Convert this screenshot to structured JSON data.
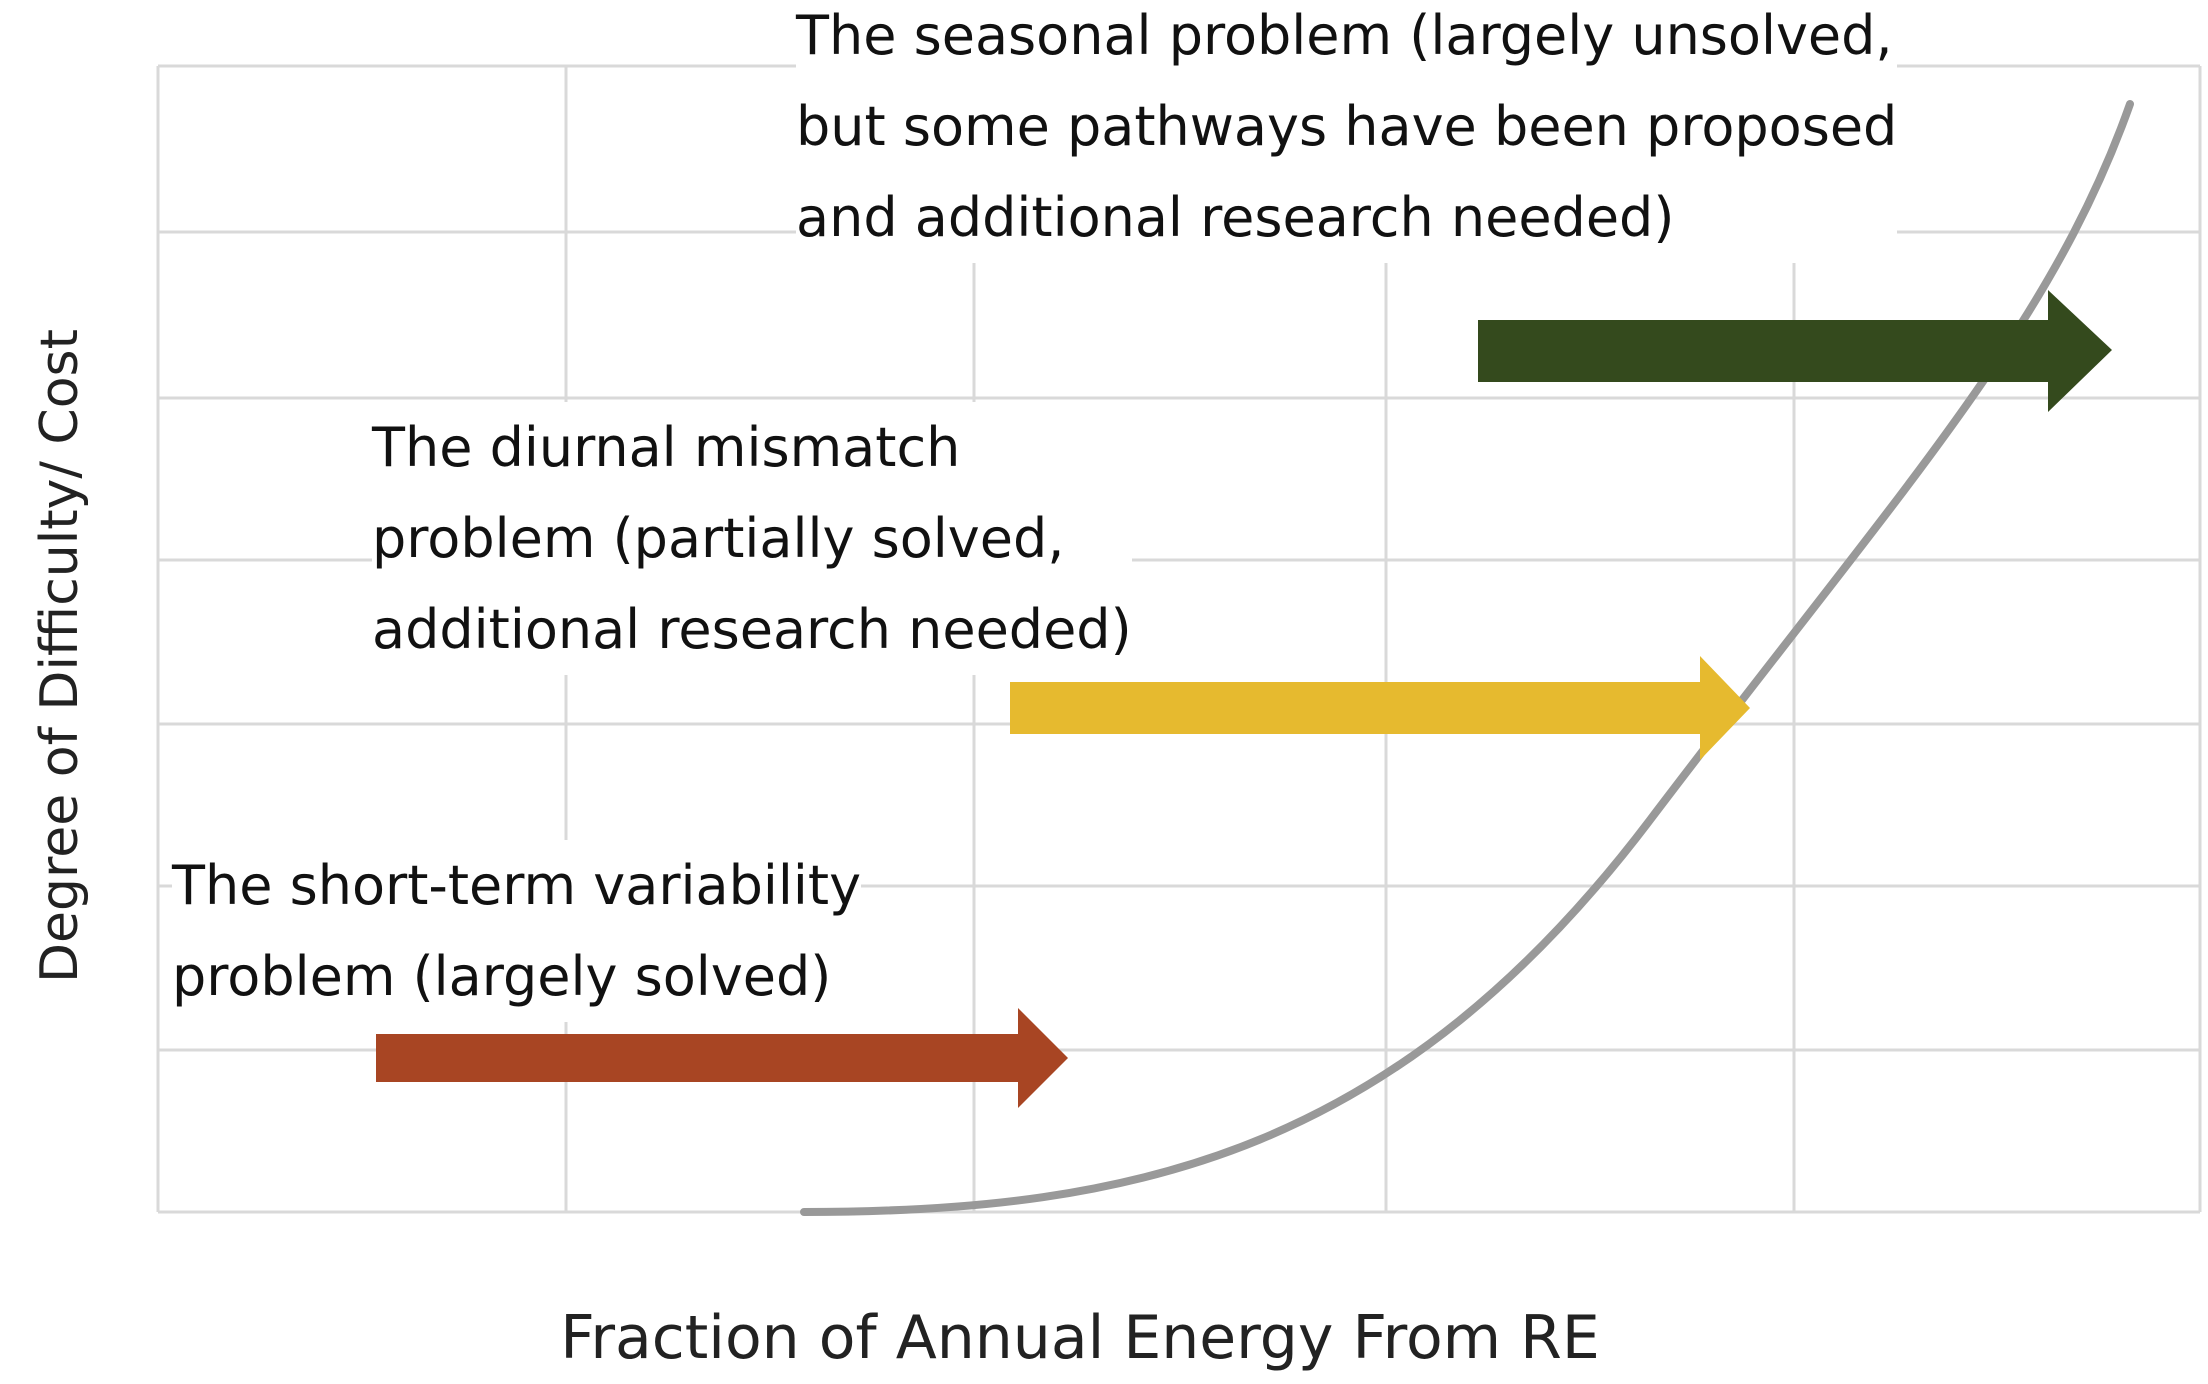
{
  "axes": {
    "x_label": "Fraction of Annual Energy From RE",
    "y_label": "Degree of Difficulty/ Cost"
  },
  "curve": {
    "color": "#999999"
  },
  "problems": [
    {
      "id": "short-term",
      "lines": [
        "The short-term variability",
        "problem (largely solved)"
      ],
      "arrow_color": "#A84523"
    },
    {
      "id": "diurnal",
      "lines": [
        "The diurnal mismatch",
        "problem (partially solved,",
        "additional research needed)"
      ],
      "arrow_color": "#E6BA2F"
    },
    {
      "id": "seasonal",
      "lines": [
        "The seasonal problem (largely unsolved,",
        "but some pathways have been proposed",
        "and additional research needed)"
      ],
      "arrow_color": "#344A1D"
    }
  ]
}
